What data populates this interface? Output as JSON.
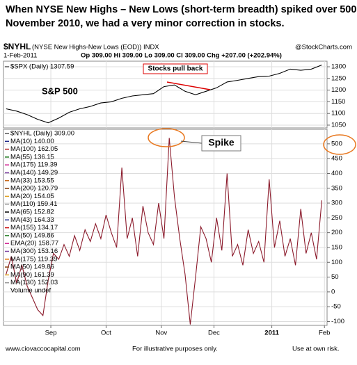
{
  "header": {
    "title_lines": [
      "When NYSE New Highs – New Lows (short-term breadth) spiked over 500 in",
      "November 2010, we had a very minor correction in stocks."
    ],
    "symbol": "$NYHL",
    "description": "(NYSE New Highs-New Lows (EOD)) INDX",
    "source": "@StockCharts.com",
    "date": "1-Feb-2011",
    "quote": "Op 309.00 Hi 309.00 Lo 309.00 Cl 309.00 Chg +207.00 (+202.94%)"
  },
  "chart_data": [
    {
      "type": "line",
      "annotations": [
        "S&P 500",
        "Stocks pull back"
      ],
      "xlim": [
        -1,
        122
      ],
      "ylim": [
        1038,
        1324
      ],
      "yticks": [
        1050,
        1100,
        1150,
        1200,
        1250,
        1300
      ],
      "grid": true,
      "series": [
        {
          "name": "$SPX (Daily) 1307.59",
          "color": "#000000",
          "x": [
            0,
            4,
            8,
            12,
            16,
            20,
            24,
            28,
            32,
            36,
            40,
            44,
            48,
            52,
            56,
            60,
            64,
            68,
            72,
            76,
            80,
            84,
            88,
            92,
            96,
            100,
            104,
            108,
            112,
            116,
            120
          ],
          "values": [
            1120,
            1110,
            1095,
            1075,
            1060,
            1080,
            1105,
            1120,
            1130,
            1145,
            1150,
            1165,
            1175,
            1180,
            1185,
            1215,
            1222,
            1195,
            1180,
            1195,
            1210,
            1235,
            1242,
            1250,
            1258,
            1260,
            1272,
            1290,
            1285,
            1290,
            1307.59
          ]
        }
      ]
    },
    {
      "type": "line",
      "annotations": [
        "Spike"
      ],
      "xlim": [
        -1,
        122
      ],
      "ylim": [
        -113,
        549
      ],
      "yticks": [
        -100,
        -50,
        0,
        50,
        100,
        150,
        200,
        250,
        300,
        350,
        400,
        450,
        500
      ],
      "xticks": [
        {
          "value": 17,
          "label": "Sep"
        },
        {
          "value": 38,
          "label": "Oct"
        },
        {
          "value": 59,
          "label": "Nov"
        },
        {
          "value": 79,
          "label": "Dec"
        },
        {
          "value": 101,
          "label": "2011"
        },
        {
          "value": 121,
          "label": "Feb"
        }
      ],
      "grid": true,
      "series": [
        {
          "name": "$NYHL (Daily) 309.00",
          "color": "#8b1a2b",
          "x": [
            0,
            2,
            4,
            6,
            8,
            10,
            12,
            14,
            16,
            18,
            20,
            22,
            24,
            26,
            28,
            30,
            32,
            34,
            36,
            38,
            40,
            42,
            44,
            46,
            48,
            50,
            52,
            54,
            56,
            58,
            60,
            62,
            64,
            66,
            68,
            70,
            72,
            74,
            76,
            78,
            80,
            82,
            84,
            86,
            88,
            90,
            92,
            94,
            96,
            98,
            100,
            102,
            104,
            106,
            108,
            110,
            112,
            114,
            116,
            118,
            120
          ],
          "values": [
            60,
            120,
            30,
            90,
            20,
            -20,
            -60,
            -80,
            40,
            130,
            110,
            160,
            120,
            190,
            140,
            210,
            170,
            230,
            180,
            260,
            200,
            150,
            420,
            180,
            250,
            120,
            290,
            200,
            160,
            300,
            180,
            520,
            320,
            180,
            60,
            -110,
            50,
            220,
            180,
            100,
            250,
            140,
            400,
            120,
            160,
            90,
            210,
            130,
            170,
            100,
            380,
            150,
            240,
            120,
            180,
            90,
            280,
            130,
            200,
            110,
            309
          ]
        }
      ],
      "legend": [
        {
          "label": "MA(10) 140.00",
          "color": "#1f2a8a"
        },
        {
          "label": "MA(100) 162.05",
          "color": "#b22222"
        },
        {
          "label": "MA(55) 136.15",
          "color": "#1e7b1e"
        },
        {
          "label": "MA(175) 119.39",
          "color": "#d02090"
        },
        {
          "label": "MA(140) 149.29",
          "color": "#7b3fa0"
        },
        {
          "label": "MA(33) 153.55",
          "color": "#c86414"
        },
        {
          "label": "MA(200) 120.79",
          "color": "#8b4513"
        },
        {
          "label": "MA(20) 154.05",
          "color": "#e0a020"
        },
        {
          "label": "MA(110) 159.41",
          "color": "#999999"
        },
        {
          "label": "MA(65) 152.82",
          "color": "#000000"
        },
        {
          "label": "MA(43) 164.33",
          "color": "#1f2a8a"
        },
        {
          "label": "MA(155) 134.17",
          "color": "#cc1111"
        },
        {
          "label": "MA(50) 149.86",
          "color": "#1e7b1e"
        },
        {
          "label": "EMA(20) 158.77",
          "color": "#d02090"
        },
        {
          "label": "MA(300) 153.16",
          "color": "#7b3fa0"
        },
        {
          "label": "MA(175) 119.39",
          "color": "#e07000"
        },
        {
          "label": "MA(50) 149.86",
          "color": "#8b4513"
        },
        {
          "label": "MA(90) 161.39",
          "color": "#e0a020"
        },
        {
          "label": "MA(130) 152.03",
          "color": "#999999"
        },
        {
          "label": "Volume undef",
          "color": "#ffffff"
        }
      ]
    }
  ],
  "footer": {
    "left": "www.ciovaccocapital.com",
    "center": "For illustrative purposes only.",
    "right": "Use at own risk."
  }
}
